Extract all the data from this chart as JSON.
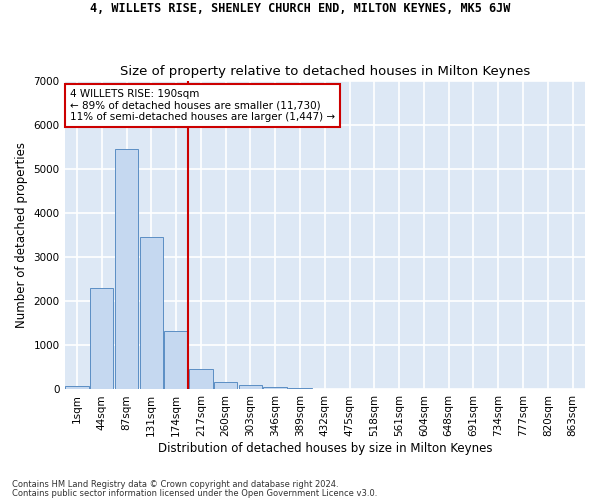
{
  "title": "4, WILLETS RISE, SHENLEY CHURCH END, MILTON KEYNES, MK5 6JW",
  "subtitle": "Size of property relative to detached houses in Milton Keynes",
  "xlabel": "Distribution of detached houses by size in Milton Keynes",
  "ylabel": "Number of detached properties",
  "footer_line1": "Contains HM Land Registry data © Crown copyright and database right 2024.",
  "footer_line2": "Contains public sector information licensed under the Open Government Licence v3.0.",
  "bar_labels": [
    "1sqm",
    "44sqm",
    "87sqm",
    "131sqm",
    "174sqm",
    "217sqm",
    "260sqm",
    "303sqm",
    "346sqm",
    "389sqm",
    "432sqm",
    "475sqm",
    "518sqm",
    "561sqm",
    "604sqm",
    "648sqm",
    "691sqm",
    "734sqm",
    "777sqm",
    "820sqm",
    "863sqm"
  ],
  "bar_values": [
    75,
    2300,
    5450,
    3450,
    1320,
    470,
    160,
    90,
    60,
    40,
    0,
    0,
    0,
    0,
    0,
    0,
    0,
    0,
    0,
    0,
    0
  ],
  "bar_color": "#c5d8f0",
  "bar_edge_color": "#5b8ec4",
  "vline_x": 4.5,
  "vline_color": "#cc0000",
  "annotation_title": "4 WILLETS RISE: 190sqm",
  "annotation_line1": "← 89% of detached houses are smaller (11,730)",
  "annotation_line2": "11% of semi-detached houses are larger (1,447) →",
  "annotation_box_color": "#ffffff",
  "annotation_box_edge": "#cc0000",
  "ylim": [
    0,
    7000
  ],
  "yticks": [
    0,
    1000,
    2000,
    3000,
    4000,
    5000,
    6000,
    7000
  ],
  "bg_color": "#dde8f5",
  "grid_color": "#ffffff",
  "fig_bg_color": "#ffffff",
  "title_fontsize": 8.5,
  "subtitle_fontsize": 9.5,
  "axis_label_fontsize": 8.5,
  "tick_fontsize": 7.5,
  "annotation_fontsize": 7.5
}
